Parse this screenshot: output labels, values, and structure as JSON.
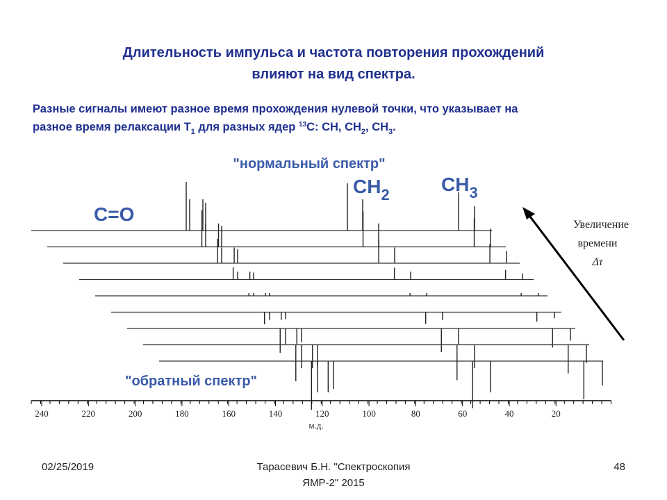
{
  "header": {
    "title_line1": "Длительность  импульса и частота повторения прохождений",
    "title_line2": "влияют на вид спектра."
  },
  "note": {
    "line1": "Разные сигналы имеют разное время прохождения нулевой точки, что указывает на",
    "line2_parts": [
      "разное время релаксации T",
      "1",
      " для разных ядер ",
      "13",
      "С: CH, CH",
      "2",
      ", CH",
      "3",
      "."
    ]
  },
  "figure": {
    "normal_label": "\"нормальный спектр\"",
    "inverted_label": "\"обратный спектр\"",
    "peak_labels": {
      "co": "C=O",
      "ch2": "CH",
      "ch2_sub": "2",
      "ch3": "CH",
      "ch3_sub": "3"
    },
    "arrow_label_line1": "Увеличение",
    "arrow_label_line2": "времени",
    "arrow_label_line3": "Δτ",
    "axis_ticks": [
      "240",
      "220",
      "200",
      "180",
      "160",
      "140",
      "120",
      "100",
      "80",
      "60",
      "40",
      "20"
    ],
    "axis_unit": "м.д."
  },
  "footer": {
    "date": "02/25/2019",
    "author_line1": "Тарасевич Б.Н. \"Спектроскопия",
    "author_line2": "ЯМР-2\" 2015",
    "page": "48"
  }
}
